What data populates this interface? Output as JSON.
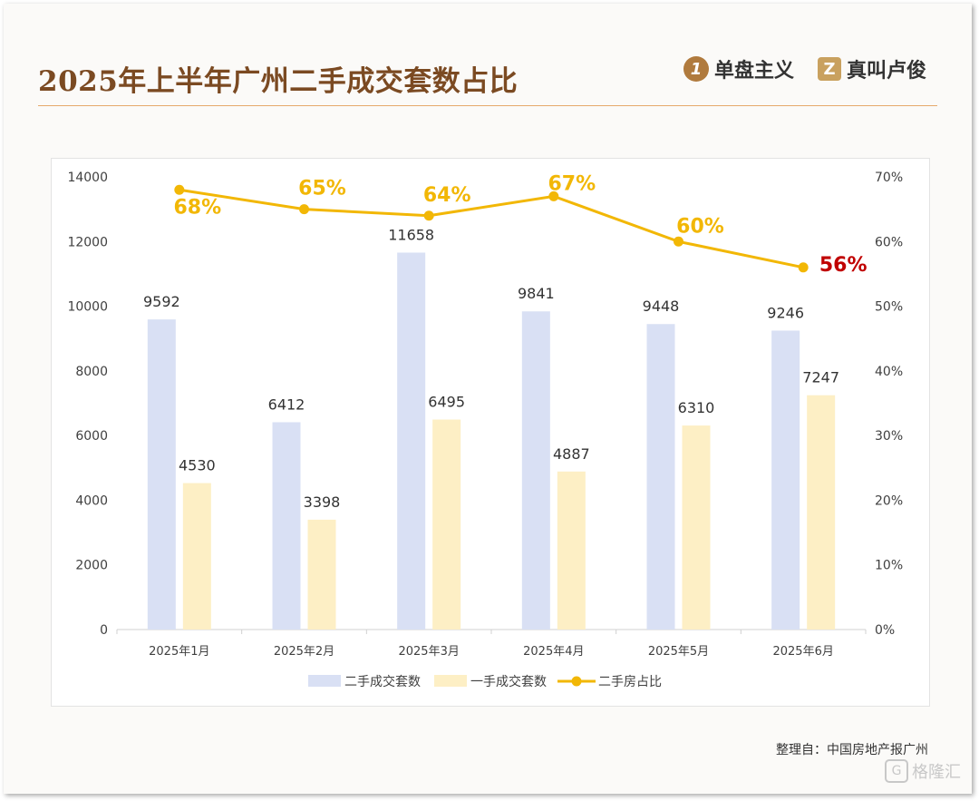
{
  "header": {
    "title": "2025年上半年广州二手成交套数占比",
    "brand1_logo": "1",
    "brand1": "单盘主义",
    "brand2_logo": "Z",
    "brand2": "真叫卢俊"
  },
  "source": "整理自：中国房地产报广州",
  "watermark": {
    "icon": "G",
    "text": "格隆汇"
  },
  "colors": {
    "title": "#7b4a22",
    "bar_secondhand": "#d9e0f4",
    "bar_firsthand": "#fdefc5",
    "line": "#f2b705",
    "highlight": "#c00000"
  },
  "chart_data": {
    "type": "bar",
    "categories": [
      "2025年1月",
      "2025年2月",
      "2025年3月",
      "2025年4月",
      "2025年5月",
      "2025年6月"
    ],
    "series": [
      {
        "name": "二手成交套数",
        "type": "bar",
        "axis": "left",
        "values": [
          9592,
          6412,
          11658,
          9841,
          9448,
          9246
        ]
      },
      {
        "name": "一手成交套数",
        "type": "bar",
        "axis": "left",
        "values": [
          4530,
          3398,
          6495,
          4887,
          6310,
          7247
        ]
      },
      {
        "name": "二手房占比",
        "type": "line",
        "axis": "right",
        "values": [
          68,
          65,
          64,
          67,
          60,
          56
        ]
      }
    ],
    "line_labels": [
      "68%",
      "65%",
      "64%",
      "67%",
      "60%",
      "56%"
    ],
    "left_axis": {
      "ylim": [
        0,
        14000
      ],
      "ticks": [
        "0",
        "2000",
        "4000",
        "6000",
        "8000",
        "10000",
        "12000",
        "14000"
      ]
    },
    "right_axis": {
      "ylim": [
        0,
        70
      ],
      "ticks": [
        "0%",
        "10%",
        "20%",
        "30%",
        "40%",
        "50%",
        "60%",
        "70%"
      ]
    },
    "grid": false,
    "legend_position": "bottom"
  }
}
